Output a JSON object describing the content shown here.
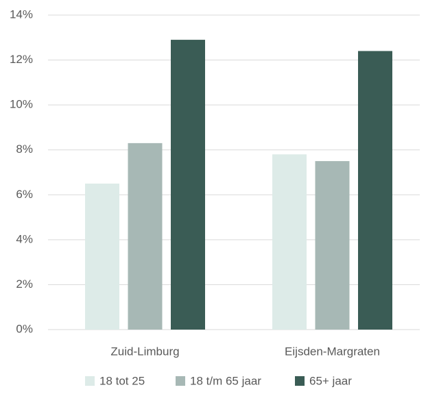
{
  "chart_data": {
    "type": "bar",
    "categories": [
      "Zuid-Limburg",
      "Eijsden-Margraten"
    ],
    "series": [
      {
        "name": "18 tot 25",
        "color": "#ddebe8",
        "values": [
          6.5,
          7.8
        ]
      },
      {
        "name": "18 t/m 65 jaar",
        "color": "#a7b8b5",
        "values": [
          8.3,
          7.5
        ]
      },
      {
        "name": "65+ jaar",
        "color": "#3a5c55",
        "values": [
          12.9,
          12.4
        ]
      }
    ],
    "ylim": [
      0,
      14
    ],
    "yticks": [
      {
        "value": 0,
        "label": "0%"
      },
      {
        "value": 2,
        "label": "2%"
      },
      {
        "value": 4,
        "label": "4%"
      },
      {
        "value": 6,
        "label": "6%"
      },
      {
        "value": 8,
        "label": "8%"
      },
      {
        "value": 10,
        "label": "10%"
      },
      {
        "value": 12,
        "label": "12%"
      },
      {
        "value": 14,
        "label": "14%"
      }
    ],
    "grid": true,
    "legend": "bottom"
  }
}
